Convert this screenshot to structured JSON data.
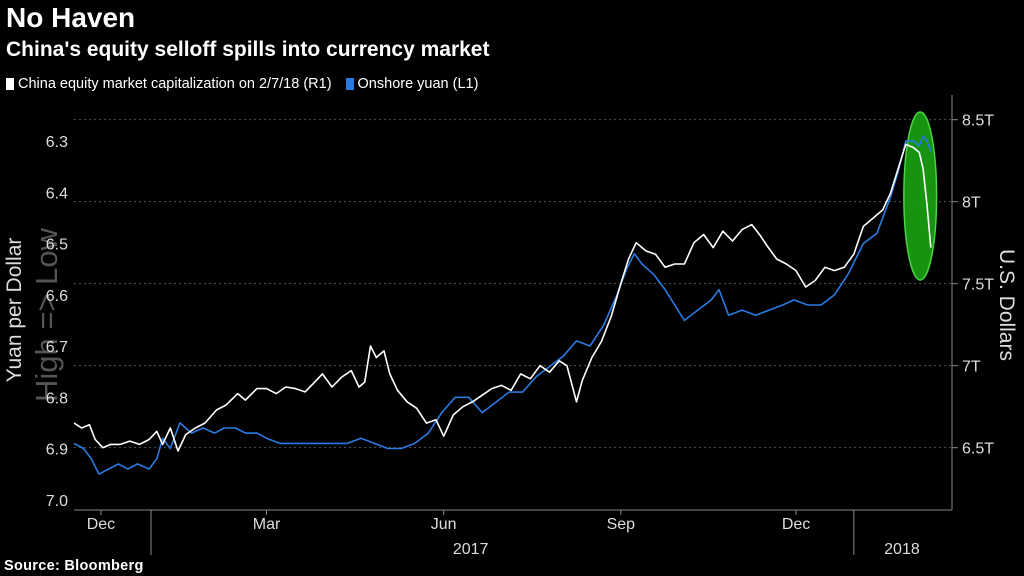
{
  "title": "No Haven",
  "subtitle": "China's equity selloff spills into currency market",
  "source": "Source: Bloomberg",
  "colors": {
    "background": "#000000",
    "equity": "#ffffff",
    "yuan": "#2a7ae2",
    "highlight": "#22c41a"
  },
  "chart_data": {
    "type": "line",
    "legend_position": "top-left",
    "grid": true,
    "left_axis": {
      "label": "Yuan per Dollar",
      "watermark": "High => Low",
      "inverted": true,
      "ticks": [
        "6.3",
        "6.4",
        "6.5",
        "6.6",
        "6.7",
        "6.8",
        "6.9",
        "7.0"
      ],
      "range": [
        6.22,
        7.02
      ]
    },
    "right_axis": {
      "label": "U.S. Dollars",
      "ticks": [
        "8.5T",
        "8T",
        "7.5T",
        "7T",
        "6.5T"
      ],
      "tick_values": [
        8.5,
        8.0,
        7.5,
        7.0,
        6.5
      ],
      "range": [
        6.12,
        8.62
      ]
    },
    "x_axis": {
      "range": [
        "2016-11-21",
        "2018-02-20"
      ],
      "month_labels": [
        {
          "label": "Dec",
          "date": "2016-12-05"
        },
        {
          "label": "Mar",
          "date": "2017-03-01"
        },
        {
          "label": "Jun",
          "date": "2017-06-01"
        },
        {
          "label": "Sep",
          "date": "2017-09-01"
        },
        {
          "label": "Dec",
          "date": "2017-12-01"
        }
      ],
      "year_labels": [
        {
          "label": "2017",
          "date": "2017-06-15"
        },
        {
          "label": "2018",
          "date": "2018-01-25"
        }
      ],
      "year_separators": [
        "2016-12-31",
        "2017-12-31"
      ]
    },
    "highlight": {
      "label": "",
      "from": "2018-01-26",
      "to": "2018-02-12"
    },
    "series": [
      {
        "name": "China equity market capitalization on 2/7/18 (R1)",
        "axis": "right",
        "points": [
          [
            "2016-11-21",
            6.65
          ],
          [
            "2016-11-25",
            6.62
          ],
          [
            "2016-11-29",
            6.64
          ],
          [
            "2016-12-02",
            6.55
          ],
          [
            "2016-12-06",
            6.5
          ],
          [
            "2016-12-10",
            6.52
          ],
          [
            "2016-12-15",
            6.52
          ],
          [
            "2016-12-20",
            6.54
          ],
          [
            "2016-12-25",
            6.52
          ],
          [
            "2016-12-30",
            6.55
          ],
          [
            "2017-01-03",
            6.6
          ],
          [
            "2017-01-06",
            6.52
          ],
          [
            "2017-01-10",
            6.62
          ],
          [
            "2017-01-14",
            6.48
          ],
          [
            "2017-01-18",
            6.58
          ],
          [
            "2017-01-23",
            6.62
          ],
          [
            "2017-01-28",
            6.65
          ],
          [
            "2017-02-03",
            6.73
          ],
          [
            "2017-02-08",
            6.76
          ],
          [
            "2017-02-14",
            6.83
          ],
          [
            "2017-02-18",
            6.79
          ],
          [
            "2017-02-24",
            6.86
          ],
          [
            "2017-03-01",
            6.86
          ],
          [
            "2017-03-06",
            6.83
          ],
          [
            "2017-03-11",
            6.87
          ],
          [
            "2017-03-16",
            6.86
          ],
          [
            "2017-03-21",
            6.84
          ],
          [
            "2017-03-26",
            6.9
          ],
          [
            "2017-03-30",
            6.95
          ],
          [
            "2017-04-04",
            6.87
          ],
          [
            "2017-04-09",
            6.93
          ],
          [
            "2017-04-14",
            6.97
          ],
          [
            "2017-04-18",
            6.87
          ],
          [
            "2017-04-21",
            6.9
          ],
          [
            "2017-04-24",
            7.12
          ],
          [
            "2017-04-27",
            7.05
          ],
          [
            "2017-05-01",
            7.09
          ],
          [
            "2017-05-04",
            6.95
          ],
          [
            "2017-05-08",
            6.85
          ],
          [
            "2017-05-13",
            6.78
          ],
          [
            "2017-05-18",
            6.74
          ],
          [
            "2017-05-23",
            6.65
          ],
          [
            "2017-05-28",
            6.67
          ],
          [
            "2017-06-01",
            6.57
          ],
          [
            "2017-06-06",
            6.7
          ],
          [
            "2017-06-11",
            6.75
          ],
          [
            "2017-06-16",
            6.78
          ],
          [
            "2017-06-21",
            6.82
          ],
          [
            "2017-06-26",
            6.86
          ],
          [
            "2017-07-01",
            6.88
          ],
          [
            "2017-07-06",
            6.85
          ],
          [
            "2017-07-11",
            6.95
          ],
          [
            "2017-07-16",
            6.92
          ],
          [
            "2017-07-21",
            7.0
          ],
          [
            "2017-07-26",
            6.96
          ],
          [
            "2017-07-31",
            7.03
          ],
          [
            "2017-08-04",
            7.0
          ],
          [
            "2017-08-09",
            6.78
          ],
          [
            "2017-08-12",
            6.91
          ],
          [
            "2017-08-17",
            7.05
          ],
          [
            "2017-08-22",
            7.15
          ],
          [
            "2017-08-27",
            7.3
          ],
          [
            "2017-09-01",
            7.5
          ],
          [
            "2017-09-05",
            7.65
          ],
          [
            "2017-09-09",
            7.75
          ],
          [
            "2017-09-14",
            7.7
          ],
          [
            "2017-09-19",
            7.68
          ],
          [
            "2017-09-24",
            7.6
          ],
          [
            "2017-09-29",
            7.62
          ],
          [
            "2017-10-04",
            7.62
          ],
          [
            "2017-10-09",
            7.75
          ],
          [
            "2017-10-14",
            7.8
          ],
          [
            "2017-10-19",
            7.72
          ],
          [
            "2017-10-24",
            7.82
          ],
          [
            "2017-10-29",
            7.76
          ],
          [
            "2017-11-03",
            7.83
          ],
          [
            "2017-11-08",
            7.86
          ],
          [
            "2017-11-12",
            7.8
          ],
          [
            "2017-11-16",
            7.73
          ],
          [
            "2017-11-21",
            7.65
          ],
          [
            "2017-11-26",
            7.62
          ],
          [
            "2017-12-01",
            7.58
          ],
          [
            "2017-12-06",
            7.48
          ],
          [
            "2017-12-11",
            7.52
          ],
          [
            "2017-12-16",
            7.6
          ],
          [
            "2017-12-21",
            7.58
          ],
          [
            "2017-12-26",
            7.6
          ],
          [
            "2017-12-31",
            7.68
          ],
          [
            "2018-01-05",
            7.85
          ],
          [
            "2018-01-10",
            7.9
          ],
          [
            "2018-01-15",
            7.95
          ],
          [
            "2018-01-19",
            8.05
          ],
          [
            "2018-01-23",
            8.2
          ],
          [
            "2018-01-27",
            8.35
          ],
          [
            "2018-01-31",
            8.33
          ],
          [
            "2018-02-03",
            8.3
          ],
          [
            "2018-02-05",
            8.2
          ],
          [
            "2018-02-07",
            7.98
          ],
          [
            "2018-02-09",
            7.72
          ]
        ]
      },
      {
        "name": "Onshore yuan (L1)",
        "axis": "left",
        "points": [
          [
            "2016-11-21",
            6.89
          ],
          [
            "2016-11-26",
            6.9
          ],
          [
            "2016-11-30",
            6.92
          ],
          [
            "2016-12-04",
            6.95
          ],
          [
            "2016-12-09",
            6.94
          ],
          [
            "2016-12-14",
            6.93
          ],
          [
            "2016-12-19",
            6.94
          ],
          [
            "2016-12-24",
            6.93
          ],
          [
            "2016-12-30",
            6.94
          ],
          [
            "2017-01-03",
            6.92
          ],
          [
            "2017-01-06",
            6.88
          ],
          [
            "2017-01-10",
            6.9
          ],
          [
            "2017-01-15",
            6.85
          ],
          [
            "2017-01-21",
            6.87
          ],
          [
            "2017-01-27",
            6.86
          ],
          [
            "2017-02-02",
            6.87
          ],
          [
            "2017-02-07",
            6.86
          ],
          [
            "2017-02-13",
            6.86
          ],
          [
            "2017-02-18",
            6.87
          ],
          [
            "2017-02-24",
            6.87
          ],
          [
            "2017-03-01",
            6.88
          ],
          [
            "2017-03-08",
            6.89
          ],
          [
            "2017-03-15",
            6.89
          ],
          [
            "2017-03-22",
            6.89
          ],
          [
            "2017-03-29",
            6.89
          ],
          [
            "2017-04-05",
            6.89
          ],
          [
            "2017-04-12",
            6.89
          ],
          [
            "2017-04-19",
            6.88
          ],
          [
            "2017-04-26",
            6.89
          ],
          [
            "2017-05-03",
            6.9
          ],
          [
            "2017-05-10",
            6.9
          ],
          [
            "2017-05-17",
            6.89
          ],
          [
            "2017-05-24",
            6.87
          ],
          [
            "2017-05-31",
            6.83
          ],
          [
            "2017-06-07",
            6.8
          ],
          [
            "2017-06-14",
            6.8
          ],
          [
            "2017-06-21",
            6.83
          ],
          [
            "2017-06-28",
            6.81
          ],
          [
            "2017-07-05",
            6.79
          ],
          [
            "2017-07-12",
            6.79
          ],
          [
            "2017-07-19",
            6.76
          ],
          [
            "2017-07-26",
            6.74
          ],
          [
            "2017-08-02",
            6.72
          ],
          [
            "2017-08-09",
            6.69
          ],
          [
            "2017-08-16",
            6.7
          ],
          [
            "2017-08-23",
            6.66
          ],
          [
            "2017-08-30",
            6.6
          ],
          [
            "2017-09-04",
            6.55
          ],
          [
            "2017-09-08",
            6.52
          ],
          [
            "2017-09-12",
            6.54
          ],
          [
            "2017-09-18",
            6.56
          ],
          [
            "2017-09-24",
            6.59
          ],
          [
            "2017-09-29",
            6.62
          ],
          [
            "2017-10-04",
            6.65
          ],
          [
            "2017-10-11",
            6.63
          ],
          [
            "2017-10-18",
            6.61
          ],
          [
            "2017-10-22",
            6.59
          ],
          [
            "2017-10-27",
            6.64
          ],
          [
            "2017-11-03",
            6.63
          ],
          [
            "2017-11-10",
            6.64
          ],
          [
            "2017-11-17",
            6.63
          ],
          [
            "2017-11-24",
            6.62
          ],
          [
            "2017-11-30",
            6.61
          ],
          [
            "2017-12-07",
            6.62
          ],
          [
            "2017-12-14",
            6.62
          ],
          [
            "2017-12-21",
            6.6
          ],
          [
            "2017-12-28",
            6.56
          ],
          [
            "2018-01-05",
            6.5
          ],
          [
            "2018-01-12",
            6.48
          ],
          [
            "2018-01-19",
            6.41
          ],
          [
            "2018-01-23",
            6.36
          ],
          [
            "2018-01-27",
            6.3
          ],
          [
            "2018-01-31",
            6.3
          ],
          [
            "2018-02-03",
            6.31
          ],
          [
            "2018-02-05",
            6.29
          ],
          [
            "2018-02-07",
            6.3
          ],
          [
            "2018-02-09",
            6.32
          ]
        ]
      }
    ]
  }
}
